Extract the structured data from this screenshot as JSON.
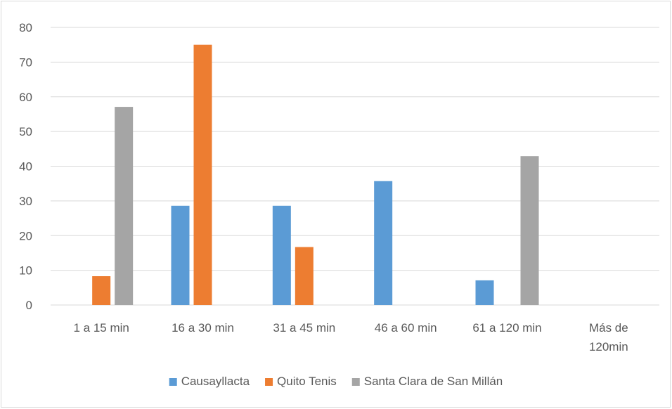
{
  "chart_data": {
    "type": "bar",
    "title": "",
    "xlabel": "",
    "ylabel": "",
    "ylim": [
      0,
      80
    ],
    "yticks": [
      0,
      10,
      20,
      30,
      40,
      50,
      60,
      70,
      80
    ],
    "grid": true,
    "legend_position": "bottom",
    "categories": [
      [
        "1 a 15 min"
      ],
      [
        "16 a 30 min"
      ],
      [
        "31 a 45  min"
      ],
      [
        "46 a 60 min"
      ],
      [
        "61 a 120 min"
      ],
      [
        "Más de",
        "120min"
      ]
    ],
    "series": [
      {
        "name": "Causayllacta",
        "color": "#5b9bd5",
        "values": [
          0,
          28.6,
          28.6,
          35.7,
          7.1,
          0
        ]
      },
      {
        "name": "Quito Tenis",
        "color": "#ed7d31",
        "values": [
          8.3,
          75,
          16.7,
          0,
          0,
          0
        ]
      },
      {
        "name": "Santa Clara de San Millán",
        "color": "#a5a5a5",
        "values": [
          57.1,
          0,
          0,
          0,
          42.9,
          0
        ]
      }
    ]
  }
}
